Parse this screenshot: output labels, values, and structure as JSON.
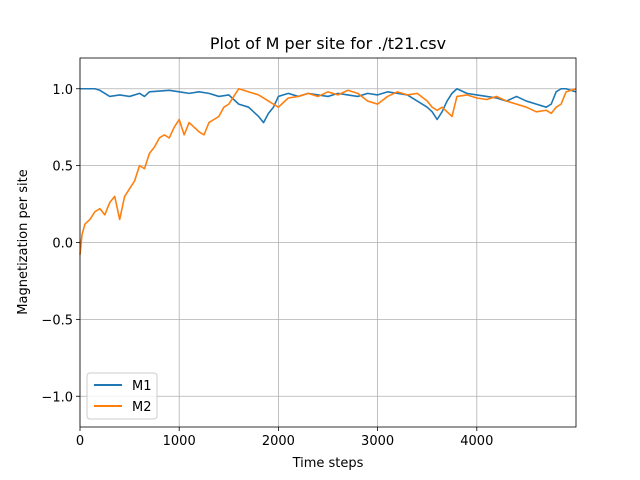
{
  "chart_data": {
    "type": "line",
    "title": "Plot of M per site for ./t21.csv",
    "xlabel": "Time steps",
    "ylabel": "Magnetization per site",
    "xlim": [
      0,
      5000
    ],
    "ylim": [
      -1.2,
      1.2
    ],
    "xticks": [
      0,
      1000,
      2000,
      3000,
      4000
    ],
    "xtick_labels": [
      "0",
      "1000",
      "2000",
      "3000",
      "4000"
    ],
    "yticks": [
      -1.0,
      -0.5,
      0.0,
      0.5,
      1.0
    ],
    "ytick_labels": [
      "−1.0",
      "−0.5",
      "0.0",
      "0.5",
      "1.0"
    ],
    "grid": true,
    "legend_position": "lower-left",
    "series": [
      {
        "name": "M1",
        "color": "#1f77b4",
        "x": [
          0,
          150,
          200,
          300,
          400,
          500,
          600,
          650,
          700,
          900,
          1000,
          1100,
          1200,
          1300,
          1400,
          1500,
          1600,
          1700,
          1750,
          1800,
          1850,
          1900,
          1950,
          2000,
          2050,
          2100,
          2200,
          2300,
          2400,
          2500,
          2600,
          2700,
          2800,
          2900,
          3000,
          3100,
          3200,
          3300,
          3400,
          3500,
          3550,
          3600,
          3650,
          3700,
          3750,
          3800,
          3900,
          4000,
          4100,
          4200,
          4300,
          4400,
          4500,
          4600,
          4700,
          4750,
          4800,
          4850,
          4900,
          5000
        ],
        "y": [
          1.0,
          1.0,
          0.99,
          0.95,
          0.96,
          0.95,
          0.97,
          0.95,
          0.98,
          0.99,
          0.98,
          0.97,
          0.98,
          0.97,
          0.95,
          0.96,
          0.9,
          0.88,
          0.85,
          0.82,
          0.78,
          0.84,
          0.88,
          0.95,
          0.96,
          0.97,
          0.95,
          0.97,
          0.96,
          0.95,
          0.97,
          0.96,
          0.95,
          0.97,
          0.96,
          0.98,
          0.97,
          0.96,
          0.92,
          0.88,
          0.85,
          0.8,
          0.85,
          0.92,
          0.97,
          1.0,
          0.97,
          0.96,
          0.95,
          0.94,
          0.92,
          0.95,
          0.92,
          0.9,
          0.88,
          0.9,
          0.98,
          1.0,
          1.0,
          0.98
        ]
      },
      {
        "name": "M2",
        "color": "#ff7f0e",
        "x": [
          0,
          20,
          50,
          100,
          150,
          200,
          250,
          300,
          350,
          400,
          450,
          500,
          550,
          600,
          650,
          700,
          750,
          800,
          850,
          900,
          950,
          1000,
          1050,
          1100,
          1150,
          1200,
          1250,
          1300,
          1350,
          1400,
          1450,
          1500,
          1550,
          1600,
          1650,
          1700,
          1750,
          1800,
          1850,
          1900,
          1950,
          2000,
          2100,
          2200,
          2300,
          2400,
          2500,
          2600,
          2700,
          2800,
          2900,
          3000,
          3100,
          3200,
          3300,
          3400,
          3500,
          3550,
          3600,
          3650,
          3700,
          3750,
          3800,
          3900,
          4000,
          4100,
          4200,
          4300,
          4400,
          4500,
          4600,
          4700,
          4750,
          4800,
          4850,
          4900,
          5000
        ],
        "y": [
          -0.08,
          0.05,
          0.12,
          0.15,
          0.2,
          0.22,
          0.18,
          0.26,
          0.3,
          0.15,
          0.3,
          0.35,
          0.4,
          0.5,
          0.48,
          0.58,
          0.62,
          0.68,
          0.7,
          0.68,
          0.75,
          0.8,
          0.7,
          0.78,
          0.75,
          0.72,
          0.7,
          0.78,
          0.8,
          0.82,
          0.88,
          0.9,
          0.95,
          1.0,
          0.99,
          0.98,
          0.97,
          0.96,
          0.94,
          0.92,
          0.9,
          0.88,
          0.94,
          0.95,
          0.97,
          0.95,
          0.98,
          0.96,
          0.99,
          0.97,
          0.92,
          0.9,
          0.95,
          0.98,
          0.96,
          0.97,
          0.92,
          0.88,
          0.86,
          0.88,
          0.85,
          0.82,
          0.95,
          0.96,
          0.94,
          0.93,
          0.95,
          0.92,
          0.9,
          0.88,
          0.85,
          0.86,
          0.84,
          0.88,
          0.9,
          0.98,
          1.0
        ]
      }
    ]
  }
}
